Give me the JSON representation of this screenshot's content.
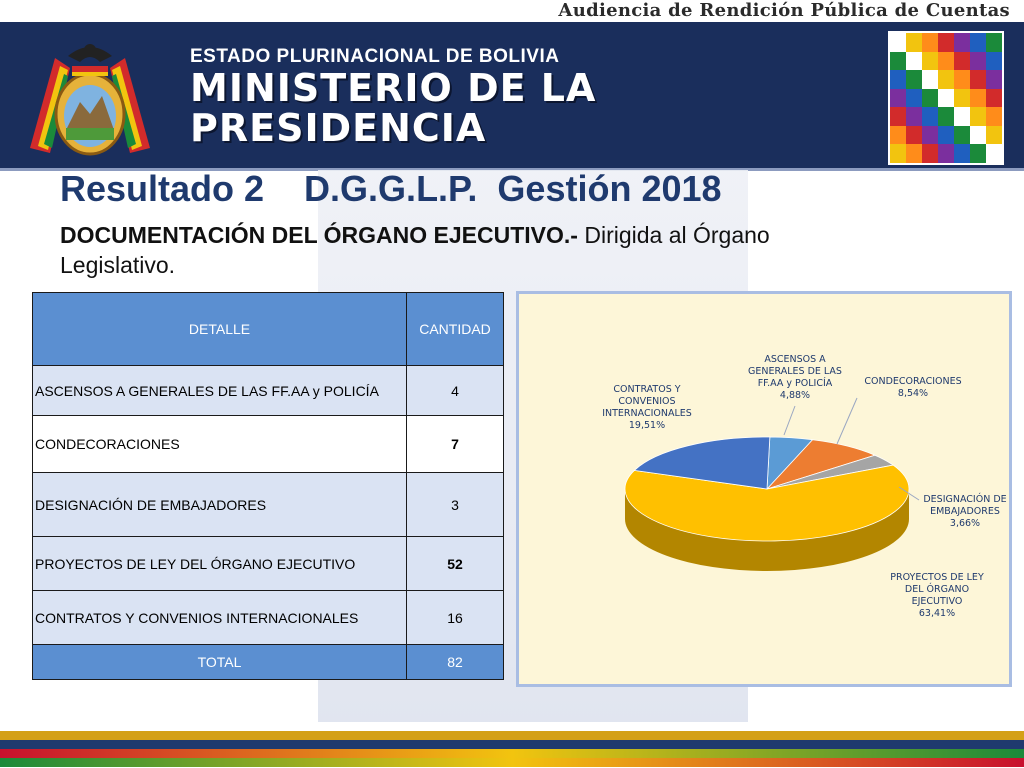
{
  "banner": {
    "ribbon_text": "Audiencia de Rendición Pública de Cuentas"
  },
  "header": {
    "line1": "ESTADO PLURINACIONAL DE BOLIVIA",
    "line2": "MINISTERIO DE LA",
    "line3": "PRESIDENCIA",
    "emblem_icon": "coat-of-arms-icon",
    "flag_icon": "wiphala-flag-icon"
  },
  "slide": {
    "title": "Resultado 2    D.G.G.L.P.  Gestión 2018",
    "subtitle_bold": "DOCUMENTACIÓN DEL ÓRGANO EJECUTIVO.-",
    "subtitle_rest": " Dirigida al Órgano Legislativo."
  },
  "table": {
    "headers": [
      "DETALLE",
      "CANTIDAD"
    ],
    "rows": [
      {
        "detail": "ASCENSOS A GENERALES DE LAS FF.AA y POLICÍA",
        "qty": "4"
      },
      {
        "detail": "CONDECORACIONES",
        "qty": "7"
      },
      {
        "detail": "DESIGNACIÓN DE EMBAJADORES",
        "qty": "3"
      },
      {
        "detail": "PROYECTOS DE LEY DEL ÓRGANO EJECUTIVO",
        "qty": "52"
      },
      {
        "detail": "CONTRATOS  Y CONVENIOS INTERNACIONALES",
        "qty": "16"
      }
    ],
    "total_label": "TOTAL",
    "total_value": "82"
  },
  "chart_data": {
    "type": "pie",
    "style": "3d",
    "title": "",
    "categories": [
      "ASCENSOS A GENERALES DE LAS FF.AA y POLICÍA",
      "CONDECORACIONES",
      "DESIGNACIÓN DE EMBAJADORES",
      "PROYECTOS DE LEY DEL ÓRGANO EJECUTIVO",
      "CONTRATOS  Y CONVENIOS INTERNACIONALES"
    ],
    "values": [
      4.88,
      8.54,
      3.66,
      63.41,
      19.51
    ],
    "percent_labels": [
      "4,88%",
      "8,54%",
      "3,66%",
      "63,41%",
      "19,51%"
    ],
    "colors": [
      "#5b9bd5",
      "#ed7d31",
      "#a5a5a5",
      "#ffc000",
      "#4472c4"
    ],
    "legend": "none",
    "labels": [
      [
        "ASCENSOS A",
        "GENERALES DE LAS",
        "FF.AA y POLICÍA",
        "4,88%"
      ],
      [
        "CONDECORACIONES",
        "8,54%"
      ],
      [
        "DESIGNACIÓN DE",
        "EMBAJADORES",
        "3,66%"
      ],
      [
        "PROYECTOS DE LEY",
        "DEL ÓRGANO",
        "EJECUTIVO",
        "63,41%"
      ],
      [
        "CONTRATOS  Y",
        "CONVENIOS",
        "INTERNACIONALES",
        "19,51%"
      ]
    ]
  },
  "colors": {
    "header_bg": "#1a2e5c",
    "title_blue": "#1f3a6e",
    "table_header": "#5b8fd1",
    "table_row": "#dae3f3",
    "chart_bg": "#fdf6d8"
  }
}
